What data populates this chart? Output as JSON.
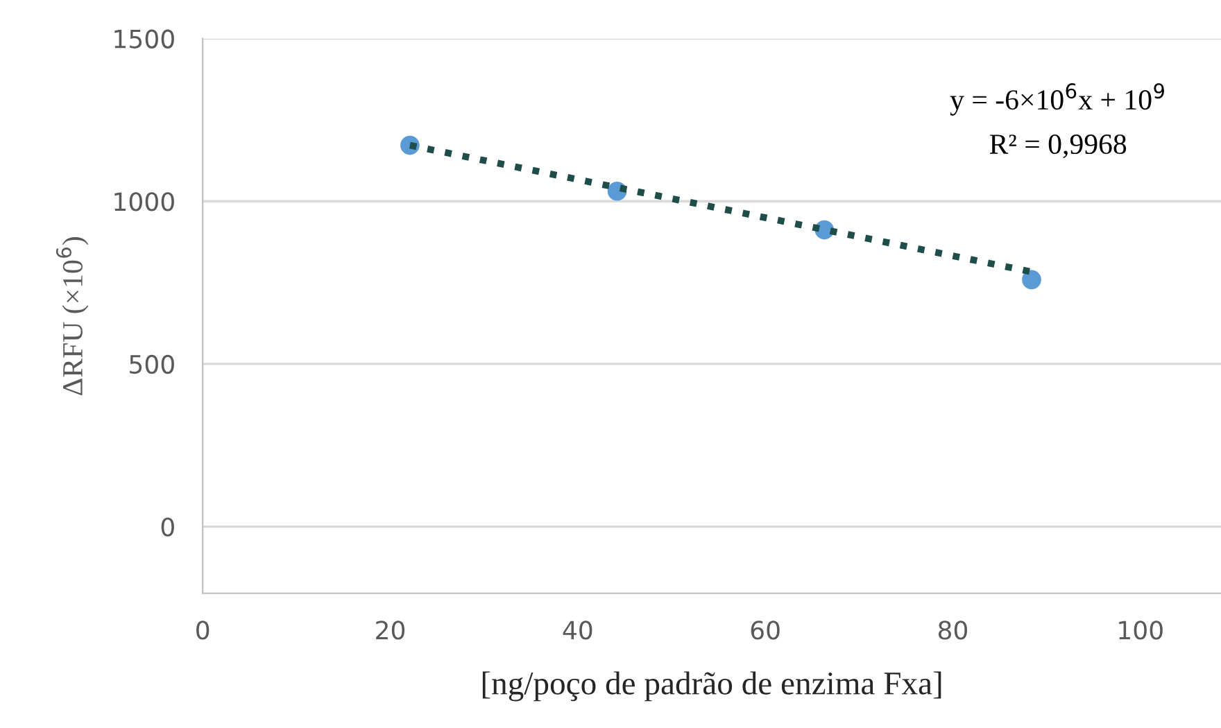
{
  "chart_data": {
    "type": "scatter",
    "xlabel": "[ng/poço de padrão de enzima Fxa]",
    "ylabel": "ΔRFU (×10$^{6}$)",
    "x": [
      22.1,
      44.2,
      66.3,
      88.4
    ],
    "series": [
      {
        "color": "#5b9bd5",
        "values": [
          1172,
          1031,
          912,
          759
        ],
        "marker": "circle"
      },
      {
        "type": "line",
        "color": "#1e4d4a",
        "x": [
          22.1,
          88.4
        ],
        "values": [
          1172,
          783
        ],
        "line_style": "dotted",
        "marker": "none"
      }
    ],
    "xlim": [
      0,
      108.6
    ],
    "xticks": [
      0,
      20,
      40,
      60,
      80,
      100
    ],
    "ylim": [
      -205,
      1500
    ],
    "yticks": [
      0,
      500,
      1000,
      1500
    ],
    "grid": "y",
    "legend": false,
    "annotations": [
      "y = -6×10$^{6}$x + 10$^{9}$",
      "R² = 0,9968"
    ]
  }
}
